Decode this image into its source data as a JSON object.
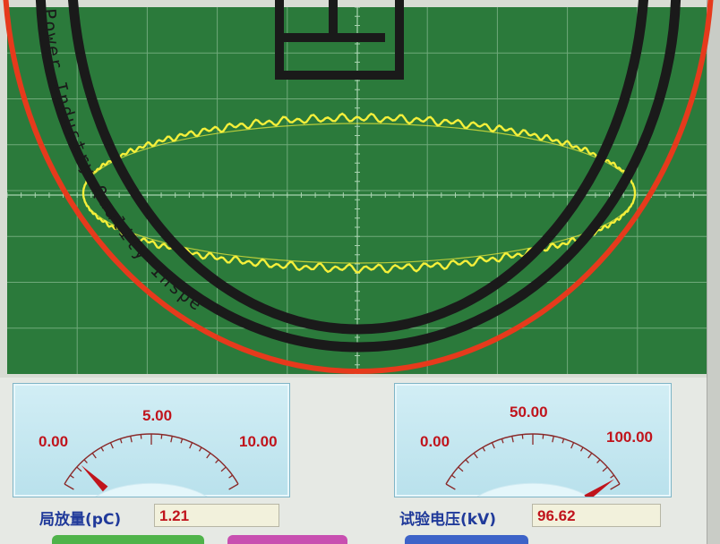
{
  "watermark": {
    "ring_text": "Power Industry Quality Inspe",
    "colors": {
      "ring": "#1a1a1a",
      "accent": "#e63a1c"
    }
  },
  "scope": {
    "grid": {
      "divisions_x": 10,
      "divisions_y": 8
    },
    "trace": {
      "shape": "ellipse",
      "color": "#f4ef3a"
    },
    "colors": {
      "screen": "#2b7a3b",
      "grid": "#6fa97a"
    }
  },
  "meters": [
    {
      "id": "pd",
      "min_label": "0.00",
      "mid_label": "5.00",
      "max_label": "10.00",
      "min": 0,
      "max": 10,
      "value": 1.21
    },
    {
      "id": "voltage",
      "min_label": "0.00",
      "mid_label": "50.00",
      "max_label": "100.00",
      "min": 0,
      "max": 100,
      "value": 96.62
    }
  ],
  "readouts": {
    "pd_label": "局放量(pC)",
    "pd_value": "1.21",
    "voltage_label": "试验电压(kV)",
    "voltage_value": "96.62"
  },
  "colors": {
    "label_blue": "#203a9a",
    "value_red": "#c0141c"
  }
}
